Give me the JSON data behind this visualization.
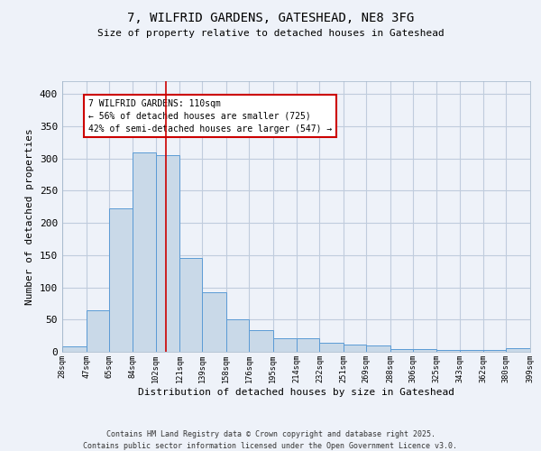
{
  "title1": "7, WILFRID GARDENS, GATESHEAD, NE8 3FG",
  "title2": "Size of property relative to detached houses in Gateshead",
  "xlabel": "Distribution of detached houses by size in Gateshead",
  "ylabel": "Number of detached properties",
  "bar_left_edges": [
    28,
    47,
    65,
    84,
    102,
    121,
    139,
    158,
    176,
    195,
    214,
    232,
    251,
    269,
    288,
    306,
    325,
    343,
    362,
    380
  ],
  "bar_widths": [
    19,
    18,
    19,
    18,
    19,
    18,
    19,
    18,
    19,
    19,
    18,
    19,
    18,
    19,
    18,
    19,
    18,
    19,
    18,
    19
  ],
  "bar_heights": [
    8,
    65,
    222,
    310,
    305,
    145,
    93,
    50,
    33,
    21,
    21,
    14,
    11,
    10,
    4,
    4,
    3,
    3,
    3,
    5
  ],
  "bar_facecolor": "#c9d9e8",
  "bar_edgecolor": "#5b9bd5",
  "grid_color": "#c0ccdd",
  "background_color": "#eef2f9",
  "vline_x": 110,
  "vline_color": "#cc0000",
  "annotation_text": "7 WILFRID GARDENS: 110sqm\n← 56% of detached houses are smaller (725)\n42% of semi-detached houses are larger (547) →",
  "annotation_box_edgecolor": "#cc0000",
  "annotation_box_facecolor": "#ffffff",
  "xlim_min": 28,
  "xlim_max": 399,
  "ylim_min": 0,
  "ylim_max": 420,
  "yticks": [
    0,
    50,
    100,
    150,
    200,
    250,
    300,
    350,
    400
  ],
  "xtick_labels": [
    "28sqm",
    "47sqm",
    "65sqm",
    "84sqm",
    "102sqm",
    "121sqm",
    "139sqm",
    "158sqm",
    "176sqm",
    "195sqm",
    "214sqm",
    "232sqm",
    "251sqm",
    "269sqm",
    "288sqm",
    "306sqm",
    "325sqm",
    "343sqm",
    "362sqm",
    "380sqm",
    "399sqm"
  ],
  "xtick_positions": [
    28,
    47,
    65,
    84,
    102,
    121,
    139,
    158,
    176,
    195,
    214,
    232,
    251,
    269,
    288,
    306,
    325,
    343,
    362,
    380,
    399
  ],
  "footer_text": "Contains HM Land Registry data © Crown copyright and database right 2025.\nContains public sector information licensed under the Open Government Licence v3.0."
}
